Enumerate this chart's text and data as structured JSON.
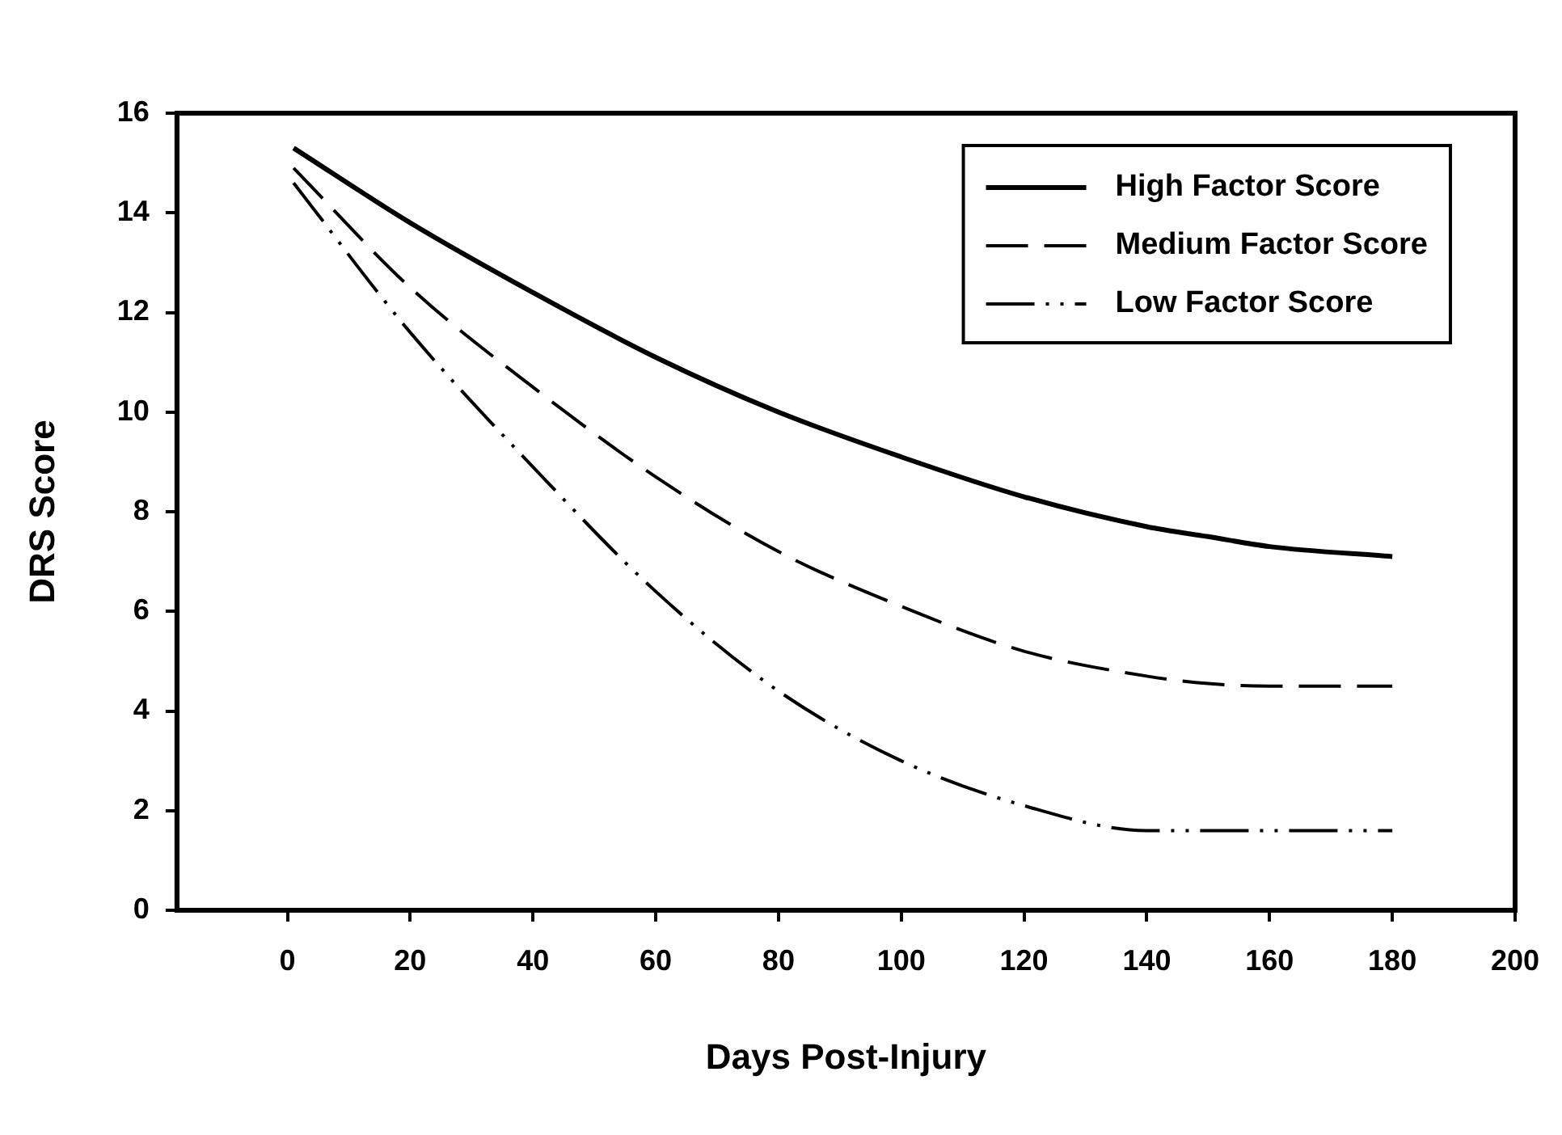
{
  "chart_data": {
    "type": "line",
    "xlabel": "Days Post-Injury",
    "ylabel": "DRS Score",
    "x": [
      1,
      20,
      40,
      60,
      80,
      100,
      120,
      140,
      150,
      160,
      180
    ],
    "series": [
      {
        "name": "High Factor Score",
        "color": "#000000",
        "line_style": "solid",
        "values": [
          15.3,
          13.8,
          12.4,
          11.1,
          10.0,
          9.1,
          8.3,
          7.7,
          7.5,
          7.3,
          7.1
        ]
      },
      {
        "name": "Medium Factor Score",
        "color": "#000000",
        "line_style": "dashed",
        "values": [
          14.9,
          12.5,
          10.5,
          8.7,
          7.2,
          6.1,
          5.2,
          4.7,
          4.55,
          4.5,
          4.5
        ]
      },
      {
        "name": "Low Factor Score",
        "color": "#000000",
        "line_style": "dotted",
        "values": [
          14.6,
          11.6,
          8.9,
          6.4,
          4.4,
          3.0,
          2.1,
          1.6,
          1.6,
          1.6,
          1.6
        ]
      }
    ],
    "xlim": [
      -18,
      200
    ],
    "xticks": [
      0,
      20,
      40,
      60,
      80,
      100,
      120,
      140,
      160,
      180,
      200
    ],
    "ylim": [
      0,
      16
    ],
    "yticks": [
      0,
      2,
      4,
      6,
      8,
      10,
      12,
      14,
      16
    ],
    "grid": false,
    "legend": "top right",
    "marker": "none"
  }
}
